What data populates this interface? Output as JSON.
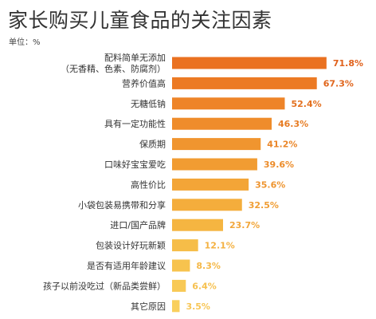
{
  "title": "家长购买儿童食品的关注因素",
  "unit_label": "单位：%",
  "chart_data": {
    "type": "bar",
    "orientation": "horizontal",
    "categories": [
      [
        "配料简单无添加",
        "（无香精、色素、防腐剂）"
      ],
      [
        "营养价值高"
      ],
      [
        "无糖低钠"
      ],
      [
        "具有一定功能性"
      ],
      [
        "保质期"
      ],
      [
        "口味好宝宝爱吃"
      ],
      [
        "高性价比"
      ],
      [
        "小袋包装易携带和分享"
      ],
      [
        "进口/国产品牌"
      ],
      [
        "包装设计好玩新颖"
      ],
      [
        "是否有适用年龄建议"
      ],
      [
        "孩子以前没吃过（新品类尝鲜）"
      ],
      [
        "其它原因"
      ]
    ],
    "values": [
      71.8,
      67.3,
      52.4,
      46.3,
      41.2,
      39.6,
      35.6,
      32.5,
      23.7,
      12.1,
      8.3,
      6.4,
      3.5
    ],
    "value_labels": [
      "71.8%",
      "67.3%",
      "52.4%",
      "46.3%",
      "41.2%",
      "39.6%",
      "35.6%",
      "32.5%",
      "23.7%",
      "12.1%",
      "8.3%",
      "6.4%",
      "3.5%"
    ],
    "colors": [
      "#ea7120",
      "#ec7a24",
      "#ee8428",
      "#ef8c2b",
      "#f0952f",
      "#f19c32",
      "#f3a537",
      "#f4ad3c",
      "#f5b541",
      "#f6bd48",
      "#f7c34e",
      "#f8c955",
      "#f9cf5d"
    ],
    "value_label_colors": [
      "#e0601a",
      "#e0651c",
      "#e3701f",
      "#e77c23",
      "#ea8527",
      "#ec8c2a",
      "#ee942e",
      "#f09d33",
      "#f2a63a",
      "#f4b141",
      "#f5b847",
      "#f6c04e",
      "#f7c656"
    ],
    "xlim": [
      0,
      75
    ],
    "grid": false,
    "legend": "none"
  }
}
